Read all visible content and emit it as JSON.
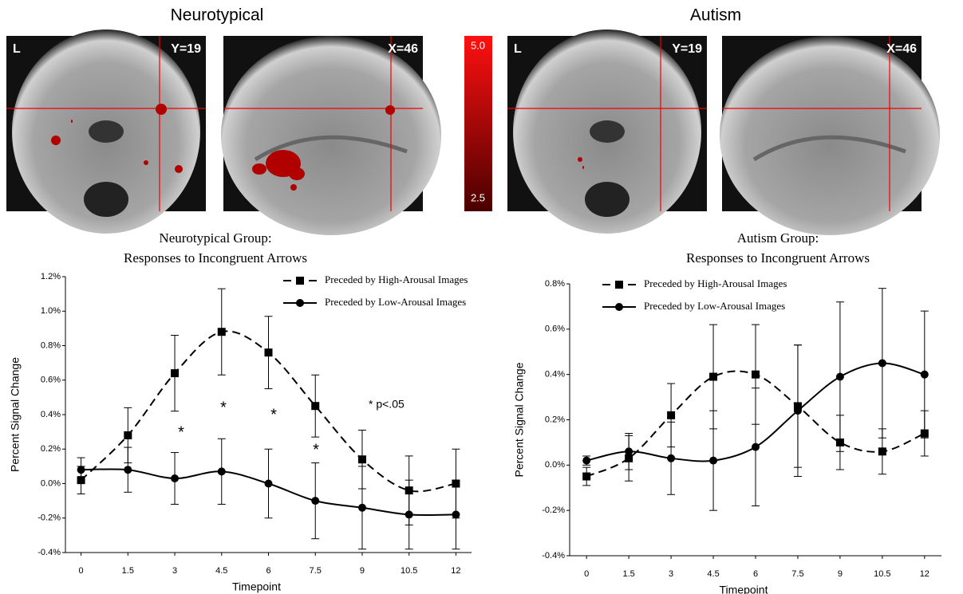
{
  "header": {
    "left": "Neurotypical",
    "right": "Autism"
  },
  "brain_panels": [
    {
      "labels": [
        "L",
        "Y=19"
      ]
    },
    {
      "labels": [
        "X=46"
      ]
    },
    {
      "labels": [
        "L",
        "Y=19"
      ]
    },
    {
      "labels": [
        "X=46"
      ]
    }
  ],
  "colorbar": {
    "max": {
      "value": 5,
      "label": "5.0"
    },
    "min": 2.5
  },
  "chart_data": [
    {
      "type": "line",
      "title": "Neurotypical Group:",
      "subtitle": "Responses to Incongruent Arrows",
      "x_label": "Timepoint",
      "y_label": "Percent Signal Change",
      "x": [
        0,
        1.5,
        3,
        4.5,
        6,
        7.5,
        9,
        10.5,
        12
      ],
      "xlim": [
        -0.5,
        12.5
      ],
      "xticks": [
        0,
        1.5,
        3,
        4.5,
        6,
        7.5,
        9,
        10.5,
        12
      ],
      "ylim": [
        -0.4,
        1.2
      ],
      "yticks": [
        {
          "value": -0.4,
          "label": "-0.4%"
        },
        {
          "value": -0.2,
          "label": "-0.2%"
        },
        {
          "value": 0,
          "label": "0.0%"
        },
        {
          "value": 0.2,
          "label": "0.2%"
        },
        {
          "value": 0.4,
          "label": "0.4%"
        },
        {
          "value": 0.6,
          "label": "0.6%"
        },
        {
          "value": 0.8,
          "label": "0.8%"
        },
        {
          "value": 1,
          "label": "1.0%"
        },
        {
          "value": 1.2,
          "label": "1.2%"
        }
      ],
      "legend": "top-right",
      "annotations": [
        "*",
        "*",
        "*",
        "*",
        "* p<.05"
      ],
      "series": [
        {
          "name": "Preceded by High-Arousal Images",
          "color": "#000000",
          "marker": "square",
          "dashed": true,
          "values": [
            0.02,
            0.28,
            0.64,
            0.88,
            0.76,
            0.45,
            0.14,
            -0.04,
            0.0
          ],
          "errors": [
            0.08,
            0.16,
            0.22,
            0.25,
            0.21,
            0.18,
            0.17,
            0.2,
            0.2
          ]
        },
        {
          "name": "Preceded by Low-Arousal Images",
          "color": "#000000",
          "marker": "circle",
          "dashed": false,
          "values": [
            0.08,
            0.08,
            0.03,
            0.07,
            0.0,
            -0.1,
            -0.14,
            -0.18,
            -0.18
          ],
          "errors": [
            0.07,
            0.13,
            0.15,
            0.19,
            0.2,
            0.22,
            0.24,
            0.2,
            0.2
          ]
        }
      ]
    },
    {
      "type": "line",
      "title": "Autism Group:",
      "subtitle": "Responses to Incongruent Arrows",
      "x_label": "Timepoint",
      "y_label": "Percent Signal Change",
      "x": [
        0,
        1.5,
        3,
        4.5,
        6,
        7.5,
        9,
        10.5,
        12
      ],
      "xlim": [
        -0.6,
        12.6
      ],
      "xticks": [
        0,
        1.5,
        3,
        4.5,
        6,
        7.5,
        9,
        10.5,
        12
      ],
      "ylim": [
        -0.4,
        0.8
      ],
      "yticks": [
        {
          "value": -0.4,
          "label": "-0.4%"
        },
        {
          "value": -0.2,
          "label": "-0.2%"
        },
        {
          "value": 0,
          "label": "0.0%"
        },
        {
          "value": 0.2,
          "label": "0.2%"
        },
        {
          "value": 0.4,
          "label": "0.4%"
        },
        {
          "value": 0.6,
          "label": "0.6%"
        },
        {
          "value": 0.8,
          "label": "0.8%"
        }
      ],
      "legend": "top-left",
      "series": [
        {
          "name": "Preceded by High-Arousal Images",
          "color": "#000000",
          "marker": "square",
          "dashed": true,
          "values": [
            -0.05,
            0.03,
            0.22,
            0.39,
            0.4,
            0.26,
            0.1,
            0.06,
            0.14
          ],
          "errors": [
            0.04,
            0.1,
            0.14,
            0.23,
            0.22,
            0.27,
            0.12,
            0.1,
            0.1
          ]
        },
        {
          "name": "Preceded by Low-Arousal Images",
          "color": "#000000",
          "marker": "circle",
          "dashed": false,
          "values": [
            0.02,
            0.06,
            0.03,
            0.02,
            0.08,
            0.24,
            0.39,
            0.45,
            0.4
          ],
          "errors": [
            0.02,
            0.08,
            0.16,
            0.22,
            0.26,
            0.29,
            0.33,
            0.33,
            0.28
          ]
        }
      ]
    }
  ]
}
